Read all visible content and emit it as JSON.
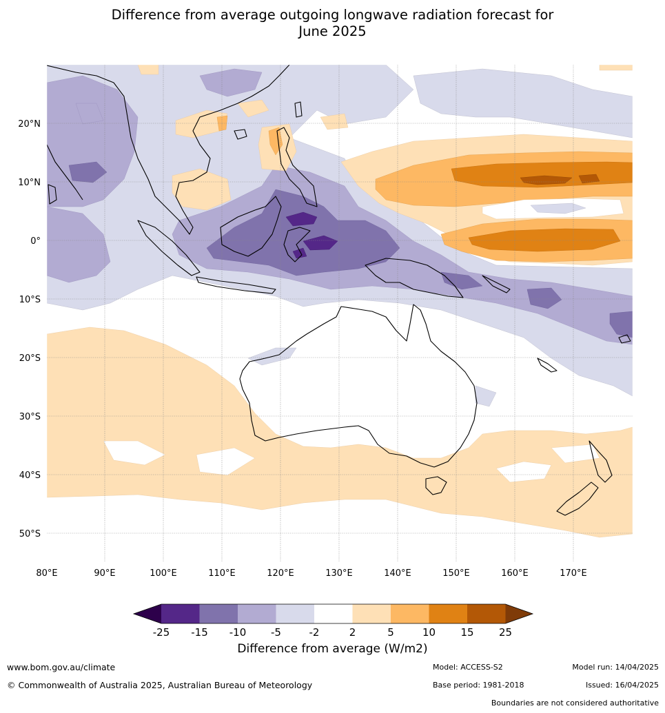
{
  "title_line1": "Difference from average outgoing longwave radiation forecast for",
  "title_line2": "June 2025",
  "map": {
    "lon_labels": [
      "80°E",
      "90°E",
      "100°E",
      "110°E",
      "120°E",
      "130°E",
      "140°E",
      "150°E",
      "160°E",
      "170°E"
    ],
    "lat_labels": [
      "20°N",
      "10°N",
      "0°",
      "10°S",
      "20°S",
      "30°S",
      "40°S",
      "50°S"
    ],
    "lon_range": [
      80,
      180
    ],
    "lat_range": [
      -55,
      30
    ],
    "gridlines": "dotted"
  },
  "legend": {
    "ticks": [
      "-25",
      "-15",
      "-10",
      "-5",
      "-2",
      "2",
      "5",
      "10",
      "15",
      "25"
    ],
    "title": "Difference from average (W/m2)",
    "colors": {
      "extend_low": "#2d004b",
      "bin1": "#542788",
      "bin2": "#8073ac",
      "bin3": "#b2abd2",
      "bin4": "#d8daeb",
      "bin5": "#ffffff",
      "bin6": "#fee0b6",
      "bin7": "#fdb863",
      "bin8": "#e08214",
      "bin9": "#b35806",
      "extend_high": "#7f3b08"
    }
  },
  "footer": {
    "website": "www.bom.gov.au/climate",
    "copyright": "© Commonwealth of Australia 2025, Australian Bureau of Meteorology",
    "model": "Model: ACCESS-S2",
    "base_period": "Base period: 1981-2018",
    "model_run": "Model run: 14/04/2025",
    "issued": "Issued: 16/04/2025",
    "disclaimer": "Boundaries are not considered authoritative"
  }
}
